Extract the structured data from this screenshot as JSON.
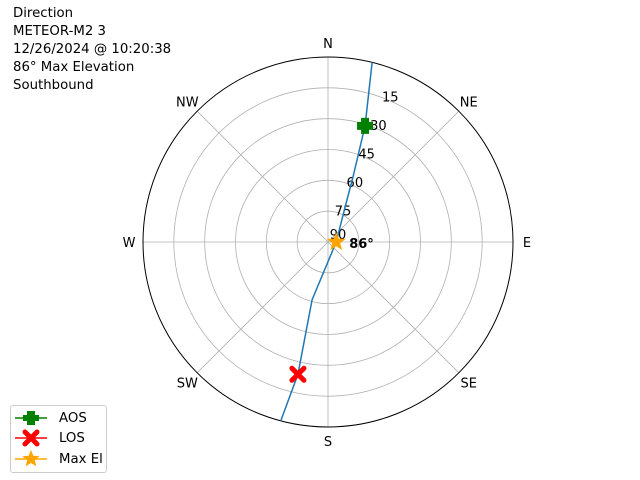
{
  "title_lines": [
    "Direction",
    "METEOR-M2 3",
    "12/26/2024 @ 10:20:38",
    "86° Max Elevation",
    "Southbound"
  ],
  "chart_data": {
    "type": "polar",
    "theta_zero": "N",
    "theta_direction": "clockwise",
    "radial_axis": "elevation (90 at center, 0 at edge)",
    "rlim": [
      90,
      0
    ],
    "grid": true,
    "direction_labels": [
      {
        "label": "N",
        "az": 0
      },
      {
        "label": "NE",
        "az": 45
      },
      {
        "label": "E",
        "az": 90
      },
      {
        "label": "SE",
        "az": 135
      },
      {
        "label": "S",
        "az": 180
      },
      {
        "label": "SW",
        "az": 225
      },
      {
        "label": "W",
        "az": 270
      },
      {
        "label": "NW",
        "az": 315
      }
    ],
    "radial_ticks": [
      15,
      30,
      45,
      60,
      75,
      90
    ],
    "track": {
      "color": "#1f77b4",
      "points": [
        {
          "az": 13.8,
          "el": 0
        },
        {
          "az": 17.7,
          "el": 30.7
        },
        {
          "az": 21,
          "el": 56
        },
        {
          "az": 26,
          "el": 71
        },
        {
          "az": 90,
          "el": 86
        },
        {
          "az": 195.4,
          "el": 60.8
        },
        {
          "az": 192.8,
          "el": 24
        },
        {
          "az": 194.8,
          "el": 0
        }
      ]
    },
    "markers": [
      {
        "name": "AOS",
        "az": 17.7,
        "el": 30.7,
        "color": "#008000",
        "symbol": "plus"
      },
      {
        "name": "LOS",
        "az": 192.8,
        "el": 24,
        "color": "#ff0000",
        "symbol": "x"
      },
      {
        "name": "Max El",
        "az": 90,
        "el": 86,
        "color": "#ffa500",
        "symbol": "star"
      }
    ],
    "annotation": "86°",
    "legend_position": "lower-left"
  }
}
